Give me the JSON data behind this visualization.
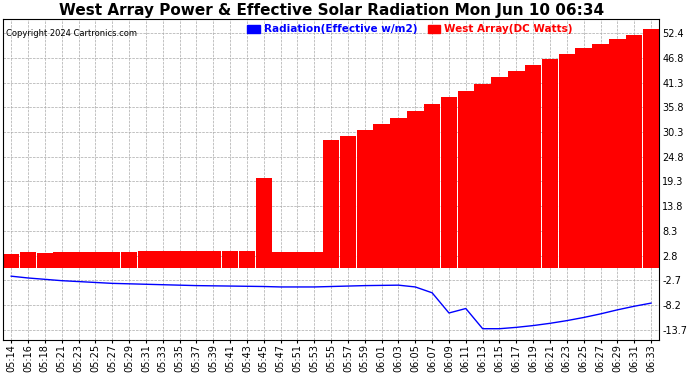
{
  "title": "West Array Power & Effective Solar Radiation Mon Jun 10 06:34",
  "copyright": "Copyright 2024 Cartronics.com",
  "legend_radiation": "Radiation(Effective w/m2)",
  "legend_west": "West Array(DC Watts)",
  "legend_radiation_color": "blue",
  "legend_west_color": "red",
  "background_color": "white",
  "plot_bg_color": "white",
  "bar_color": "red",
  "line_color": "blue",
  "yticks_right": [
    52.4,
    46.8,
    41.3,
    35.8,
    30.3,
    24.8,
    19.3,
    13.8,
    8.3,
    2.8,
    -2.7,
    -8.2,
    -13.7
  ],
  "ymin": -16.0,
  "ymax": 55.5,
  "grid_color": "#aaaaaa",
  "title_fontsize": 11,
  "tick_fontsize": 7,
  "x_labels": [
    "05:14",
    "05:16",
    "05:18",
    "05:21",
    "05:23",
    "05:25",
    "05:27",
    "05:29",
    "05:31",
    "05:33",
    "05:35",
    "05:37",
    "05:39",
    "05:41",
    "05:43",
    "05:45",
    "05:47",
    "05:51",
    "05:53",
    "05:55",
    "05:57",
    "05:59",
    "06:01",
    "06:03",
    "06:05",
    "06:07",
    "06:09",
    "06:11",
    "06:13",
    "06:15",
    "06:17",
    "06:19",
    "06:21",
    "06:23",
    "06:25",
    "06:27",
    "06:29",
    "06:31",
    "06:33"
  ],
  "bar_values": [
    3.2,
    3.5,
    3.4,
    3.5,
    3.5,
    3.6,
    3.6,
    3.6,
    3.7,
    3.7,
    3.7,
    3.7,
    3.7,
    3.8,
    3.8,
    20.0,
    3.5,
    3.5,
    3.6,
    28.5,
    29.5,
    30.8,
    32.0,
    33.5,
    35.0,
    36.5,
    38.2,
    39.5,
    41.0,
    42.5,
    43.8,
    45.2,
    46.5,
    47.8,
    49.0,
    50.0,
    51.0,
    52.0,
    53.2
  ],
  "line_values": [
    -1.8,
    -2.2,
    -2.5,
    -2.8,
    -3.0,
    -3.2,
    -3.4,
    -3.5,
    -3.6,
    -3.7,
    -3.8,
    -3.9,
    -3.95,
    -4.0,
    -4.05,
    -4.1,
    -4.2,
    -4.2,
    -4.2,
    -4.1,
    -4.0,
    -3.9,
    -3.85,
    -3.8,
    -4.2,
    -5.5,
    -10.0,
    -9.0,
    -13.5,
    -13.5,
    -13.2,
    -12.8,
    -12.3,
    -11.7,
    -11.0,
    -10.2,
    -9.3,
    -8.5,
    -7.8
  ],
  "figwidth": 6.9,
  "figheight": 3.75,
  "dpi": 100
}
